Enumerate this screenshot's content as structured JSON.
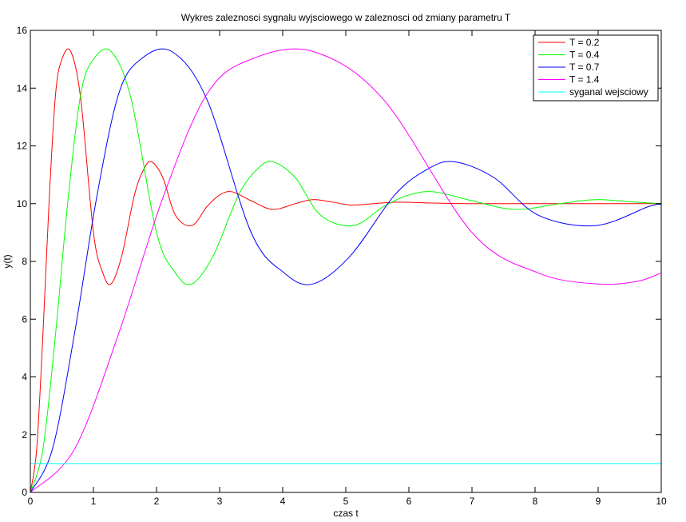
{
  "chart_data": {
    "type": "line",
    "title": "Wykres zaleznosci sygnalu wyjsciowego w zaleznosci od zmiany parametru T",
    "xlabel": "czas t",
    "ylabel": "y(t)",
    "xlim": [
      0,
      10
    ],
    "ylim": [
      0,
      16
    ],
    "xticks": [
      0,
      1,
      2,
      3,
      4,
      5,
      6,
      7,
      8,
      9,
      10
    ],
    "yticks": [
      0,
      2,
      4,
      6,
      8,
      10,
      12,
      14,
      16
    ],
    "grid": false,
    "legend_position": "top-right",
    "series": [
      {
        "name": "T = 0.2",
        "color": "#ff0000",
        "t_scale": 0.2,
        "x": [
          0,
          0.1,
          0.2,
          0.3,
          0.4,
          0.5,
          0.64,
          0.8,
          1.0,
          1.15,
          1.28,
          1.45,
          1.65,
          1.8,
          1.92,
          2.1,
          2.3,
          2.56,
          2.8,
          3.0,
          3.2,
          3.5,
          3.84,
          4.2,
          4.48,
          4.8,
          5.12,
          5.76,
          6.4,
          7.04,
          8.0,
          9.0,
          10.0
        ],
        "values": [
          0,
          1.5,
          5.5,
          10.2,
          13.8,
          15.0,
          15.27,
          13.6,
          9.0,
          7.6,
          7.22,
          8.2,
          10.3,
          11.2,
          11.45,
          10.9,
          9.6,
          9.24,
          9.9,
          10.3,
          10.41,
          10.1,
          9.8,
          10.0,
          10.14,
          10.05,
          9.95,
          10.05,
          10.02,
          10.0,
          10.0,
          10.0,
          10.0
        ]
      },
      {
        "name": "T = 0.4",
        "color": "#00ff00",
        "t_scale": 0.4,
        "x": [
          0,
          0.2,
          0.4,
          0.6,
          0.8,
          1.0,
          1.28,
          1.6,
          2.0,
          2.3,
          2.56,
          2.9,
          3.3,
          3.6,
          3.84,
          4.2,
          4.6,
          5.12,
          5.6,
          6.0,
          6.4,
          7.0,
          7.68,
          8.4,
          8.96,
          9.6,
          10.0
        ],
        "values": [
          0,
          1.5,
          5.5,
          10.2,
          13.8,
          15.0,
          15.27,
          13.6,
          9.0,
          7.6,
          7.22,
          8.2,
          10.3,
          11.2,
          11.45,
          10.9,
          9.6,
          9.24,
          9.9,
          10.3,
          10.41,
          10.1,
          9.8,
          10.0,
          10.14,
          10.05,
          10.0
        ]
      },
      {
        "name": "T = 0.7",
        "color": "#0000ff",
        "t_scale": 0.7,
        "x": [
          0,
          0.35,
          0.7,
          1.05,
          1.4,
          1.75,
          2.24,
          2.8,
          3.5,
          4.025,
          4.48,
          5.075,
          5.775,
          6.3,
          6.72,
          7.35,
          8.05,
          8.96,
          9.8,
          10.0
        ],
        "values": [
          0,
          1.5,
          5.5,
          10.2,
          13.8,
          15.0,
          15.27,
          13.6,
          9.0,
          7.6,
          7.22,
          8.2,
          10.3,
          11.2,
          11.45,
          10.9,
          9.6,
          9.24,
          9.9,
          9.98
        ]
      },
      {
        "name": "T = 1.4",
        "color": "#ff00ff",
        "t_scale": 1.4,
        "x": [
          0,
          0.7,
          1.4,
          2.1,
          2.8,
          3.5,
          4.48,
          5.6,
          7.0,
          8.05,
          8.96,
          9.6,
          10.0
        ],
        "values": [
          0,
          1.5,
          5.5,
          10.2,
          13.8,
          15.0,
          15.27,
          13.6,
          9.0,
          7.6,
          7.22,
          7.3,
          7.6
        ]
      },
      {
        "name": "syganal wejsciowy",
        "color": "#00ffff",
        "x": [
          0,
          10
        ],
        "values": [
          1,
          1
        ]
      }
    ]
  }
}
